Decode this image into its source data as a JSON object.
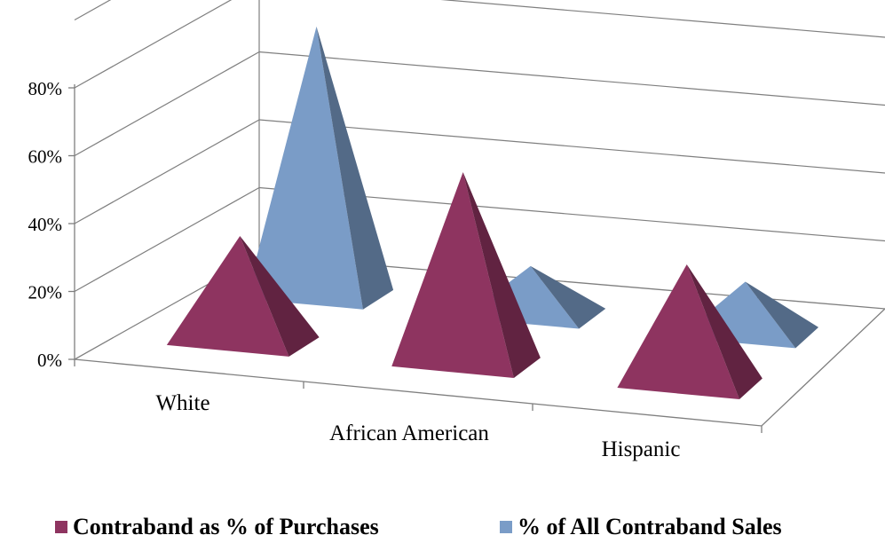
{
  "chart_data": {
    "type": "bar",
    "bar_shape": "pyramid-3d",
    "categories": [
      "White",
      "African American",
      "Hispanic"
    ],
    "series": [
      {
        "name": "Contraband as % of Purchases",
        "color": "#8e3460",
        "values": [
          0.31,
          0.56,
          0.35
        ]
      },
      {
        "name": "% of All Contraband Sales",
        "color": "#7a9cc7",
        "values": [
          0.79,
          0.14,
          0.15
        ]
      }
    ],
    "y_ticks": [
      "0%",
      "20%",
      "40%",
      "60%",
      "80%"
    ],
    "ylim": [
      0,
      0.8
    ],
    "grid": true,
    "legend": "bottom"
  }
}
